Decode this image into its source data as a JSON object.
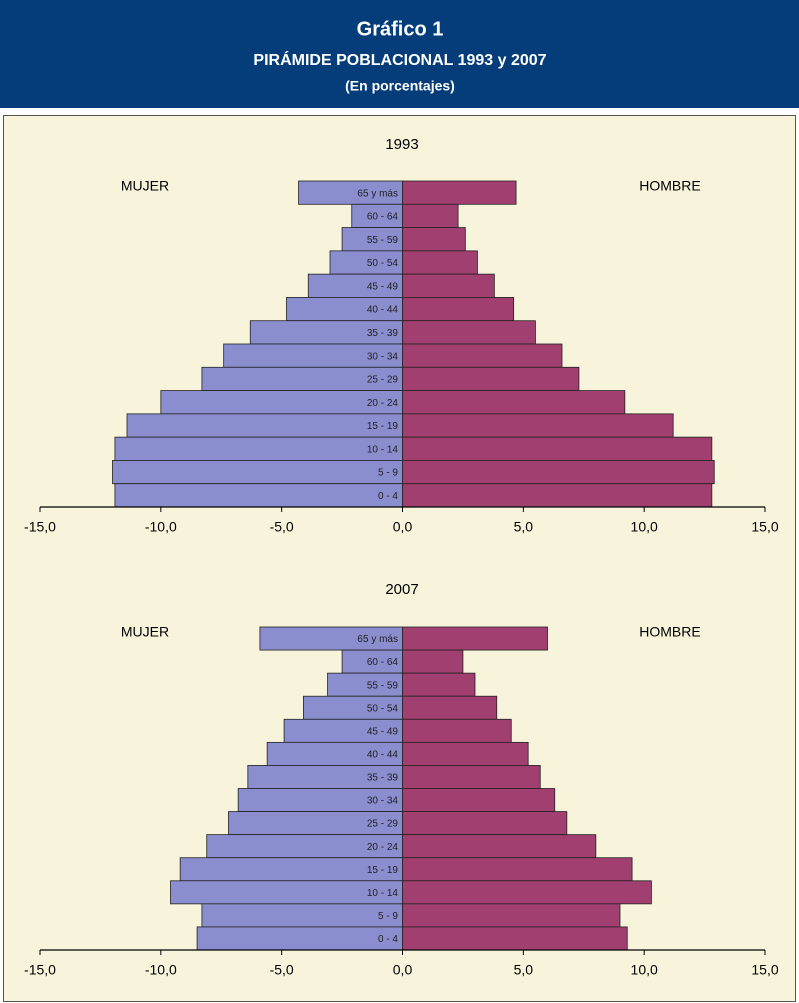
{
  "header": {
    "title": "Gráfico 1",
    "subtitle": "PIRÁMIDE POBLACIONAL 1993 y 2007",
    "note": "(En porcentajes)"
  },
  "chart_data": [
    {
      "type": "pyramid",
      "title": "1993",
      "categories": [
        "65 y más",
        "60 - 64",
        "55 - 59",
        "50 - 54",
        "45 - 49",
        "40 - 44",
        "35 - 39",
        "30 - 34",
        "25 - 29",
        "20 - 24",
        "15 - 19",
        "10 - 14",
        "5 - 9",
        "0 - 4"
      ],
      "series": [
        {
          "name": "MUJER",
          "color": "#8a8ece",
          "values": [
            -4.3,
            -2.1,
            -2.5,
            -3.0,
            -3.9,
            -4.8,
            -6.3,
            -7.4,
            -8.3,
            -10.0,
            -11.4,
            -11.9,
            -12.0,
            -11.9
          ]
        },
        {
          "name": "HOMBRE",
          "color": "#a03f70",
          "values": [
            4.7,
            2.3,
            2.6,
            3.1,
            3.8,
            4.6,
            5.5,
            6.6,
            7.3,
            9.2,
            11.2,
            12.8,
            12.9,
            12.8
          ]
        }
      ],
      "xlim": [
        -15,
        15
      ],
      "xticks": [
        {
          "value": -15,
          "label": "-15,0"
        },
        {
          "value": -10,
          "label": "-10,0"
        },
        {
          "value": -5,
          "label": "-5,0"
        },
        {
          "value": 0,
          "label": "0,0"
        },
        {
          "value": 5,
          "label": "5,0"
        },
        {
          "value": 10,
          "label": "10,0"
        },
        {
          "value": 15,
          "label": "15,0"
        }
      ]
    },
    {
      "type": "pyramid",
      "title": "2007",
      "categories": [
        "65 y más",
        "60 - 64",
        "55 - 59",
        "50 - 54",
        "45 - 49",
        "40 - 44",
        "35 - 39",
        "30 - 34",
        "25 - 29",
        "20 - 24",
        "15 - 19",
        "10 - 14",
        "5 - 9",
        "0 - 4"
      ],
      "series": [
        {
          "name": "MUJER",
          "color": "#8a8ece",
          "values": [
            -5.9,
            -2.5,
            -3.1,
            -4.1,
            -4.9,
            -5.6,
            -6.4,
            -6.8,
            -7.2,
            -8.1,
            -9.2,
            -9.6,
            -8.3,
            -8.5
          ]
        },
        {
          "name": "HOMBRE",
          "color": "#a03f70",
          "values": [
            6.0,
            2.5,
            3.0,
            3.9,
            4.5,
            5.2,
            5.7,
            6.3,
            6.8,
            8.0,
            9.5,
            10.3,
            9.0,
            9.3
          ]
        }
      ],
      "xlim": [
        -15,
        15
      ],
      "xticks": [
        {
          "value": -15,
          "label": "-15,0"
        },
        {
          "value": -10,
          "label": "-10,0"
        },
        {
          "value": -5,
          "label": "-5,0"
        },
        {
          "value": 0,
          "label": "0,0"
        },
        {
          "value": 5,
          "label": "5,0"
        },
        {
          "value": 10,
          "label": "10,0"
        },
        {
          "value": 15,
          "label": "15,0"
        }
      ]
    }
  ]
}
